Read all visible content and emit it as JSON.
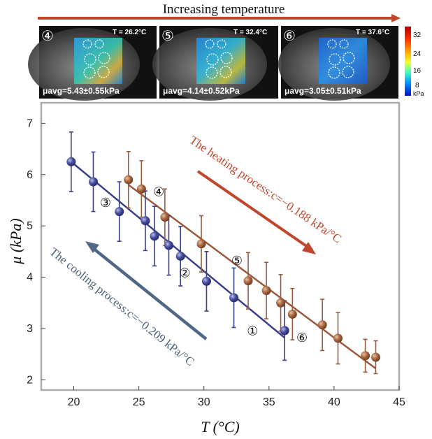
{
  "header": {
    "title": "Increasing temperature",
    "arrow_color": "#c0462c"
  },
  "panels": [
    {
      "id": "④",
      "temp": "T = 26.2°C",
      "mu": "μavg=5.43±0.55kPa"
    },
    {
      "id": "⑤",
      "temp": "T = 32.4°C",
      "mu": "μavg=4.14±0.52kPa"
    },
    {
      "id": "⑥",
      "temp": "T = 37.6°C",
      "mu": "μavg=3.05±0.51kPa"
    }
  ],
  "colorbar": {
    "ticks": [
      "32",
      "24",
      "16",
      "8"
    ],
    "unit": "kPa"
  },
  "chart_data": {
    "type": "scatter",
    "xlabel": "T (°C)",
    "ylabel": "μ (kPa)",
    "xlim": [
      17.5,
      45
    ],
    "ylim": [
      1.8,
      7.4
    ],
    "x_ticks": [
      20,
      25,
      30,
      35,
      40,
      45
    ],
    "y_ticks": [
      2,
      3,
      4,
      5,
      6,
      7
    ],
    "grid": false,
    "series": [
      {
        "name": "The heating process:c=−0.188 kPa/°C",
        "color": "#9a5a3c",
        "line": {
          "x": [
            24.2,
            43.2
          ],
          "y": [
            5.8,
            2.22
          ]
        },
        "points": [
          {
            "x": 24.2,
            "y": 5.9,
            "err": 0.55
          },
          {
            "x": 25.2,
            "y": 5.72,
            "err": 0.55
          },
          {
            "x": 27.0,
            "y": 5.17,
            "err": 0.55
          },
          {
            "x": 29.8,
            "y": 4.65,
            "err": 0.55
          },
          {
            "x": 33.4,
            "y": 3.93,
            "err": 0.55
          },
          {
            "x": 34.8,
            "y": 3.74,
            "err": 0.55
          },
          {
            "x": 35.9,
            "y": 3.5,
            "err": 0.55
          },
          {
            "x": 36.8,
            "y": 3.28,
            "err": 0.5
          },
          {
            "x": 39.1,
            "y": 3.07,
            "err": 0.5
          },
          {
            "x": 40.3,
            "y": 2.81,
            "err": 0.5
          },
          {
            "x": 42.4,
            "y": 2.47,
            "err": 0.32
          },
          {
            "x": 43.2,
            "y": 2.44,
            "err": 0.32
          }
        ]
      },
      {
        "name": "The cooling process:c=−0.209 kPa/°C",
        "color": "#3a3f8a",
        "line": {
          "x": [
            19.8,
            36.2
          ],
          "y": [
            6.25,
            2.82
          ]
        },
        "points": [
          {
            "x": 19.8,
            "y": 6.25,
            "err": 0.58
          },
          {
            "x": 21.5,
            "y": 5.86,
            "err": 0.58
          },
          {
            "x": 23.5,
            "y": 5.28,
            "err": 0.58
          },
          {
            "x": 25.5,
            "y": 5.1,
            "err": 0.58
          },
          {
            "x": 26.2,
            "y": 4.8,
            "err": 0.58
          },
          {
            "x": 27.3,
            "y": 4.62,
            "err": 0.58
          },
          {
            "x": 28.2,
            "y": 4.41,
            "err": 0.58
          },
          {
            "x": 30.2,
            "y": 3.92,
            "err": 0.58
          },
          {
            "x": 32.3,
            "y": 3.6,
            "err": 0.58
          },
          {
            "x": 36.2,
            "y": 2.96,
            "err": 0.58
          }
        ]
      }
    ],
    "annotations": [
      {
        "text": "The heating process:c=−0.188 kPa/°C",
        "color": "#c0462c"
      },
      {
        "text": "The cooling process:c=−0.209 kPa/°C",
        "color": "#4a5f7a"
      }
    ],
    "markers": [
      {
        "label": "①",
        "x": 34.0,
        "y": 2.95
      },
      {
        "label": "②",
        "x": 28.8,
        "y": 4.08
      },
      {
        "label": "③",
        "x": 22.7,
        "y": 5.45
      },
      {
        "label": "④",
        "x": 26.8,
        "y": 5.66
      },
      {
        "label": "⑤",
        "x": 32.8,
        "y": 4.32
      },
      {
        "label": "⑥",
        "x": 37.8,
        "y": 2.82
      }
    ]
  }
}
